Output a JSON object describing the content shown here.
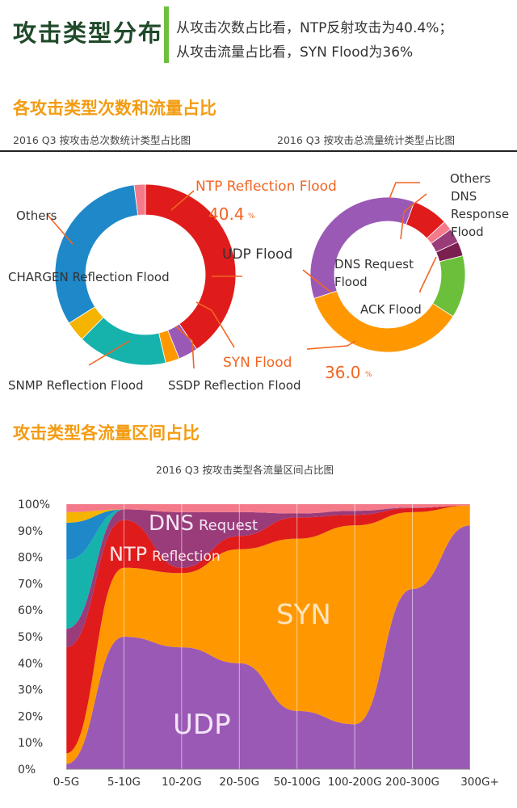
{
  "header": {
    "title": "攻击类型分布",
    "line1": "从攻击次数占比看，NTP反射攻击为40.4%；",
    "line2": "从攻击流量占比看，SYN Flood为36%"
  },
  "section1": {
    "title": "各攻击类型次数和流量占比",
    "sub_left": "2016 Q3 按攻击总次数统计类型占比图",
    "sub_right": "2016 Q3 按攻击总流量统计类型占比图"
  },
  "section2": {
    "title": "攻击类型各流量区间占比",
    "chart_title": "2016 Q3 按攻击类型各流量区间占比图"
  },
  "colors": {
    "ntp": "#e01b1b",
    "udp": "#9b59b6",
    "syn": "#ff9800",
    "ssdp": "#16b3ad",
    "snmp": "#f5b400",
    "chargen": "#1e88c8",
    "others": "#f47a8a",
    "dns_request": "#9a3b7a",
    "dns_response": "#7a1f4f",
    "ack": "#6cbf3a"
  },
  "chart_data": [
    {
      "type": "pie",
      "title": "2016 Q3 按攻击总次数统计类型占比图",
      "slices": [
        {
          "label": "NTP Reflection Flood",
          "value": 40.4
        },
        {
          "label": "UDP Flood",
          "value": 3.5
        },
        {
          "label": "SYN Flood",
          "value": 2.5
        },
        {
          "label": "SSDP Reflection Flood",
          "value": 16.0
        },
        {
          "label": "SNMP Reflection Flood",
          "value": 3.6
        },
        {
          "label": "CHARGEN Reflection Flood",
          "value": 32.0
        },
        {
          "label": "Others",
          "value": 2.0
        }
      ],
      "highlight_label": "40.4",
      "highlight_unit": "%"
    },
    {
      "type": "pie",
      "title": "2016 Q3 按攻击总流量统计类型占比图",
      "slices": [
        {
          "label": "NTP Reflection Flood",
          "value": 7.5
        },
        {
          "label": "Others",
          "value": 2.0
        },
        {
          "label": "DNS Request Flood",
          "value": 3.0
        },
        {
          "label": "DNS Response Flood",
          "value": 3.0
        },
        {
          "label": "ACK Flood",
          "value": 13.0
        },
        {
          "label": "SYN Flood",
          "value": 36.0
        },
        {
          "label": "UDP Flood",
          "value": 35.5
        }
      ],
      "highlight_label": "36.0",
      "highlight_unit": "%"
    },
    {
      "type": "area",
      "title": "2016 Q3 按攻击类型各流量区间占比图",
      "categories": [
        "0-5G",
        "5-10G",
        "10-20G",
        "20-50G",
        "50-100G",
        "100-200G",
        "200-300G",
        "300G+"
      ],
      "ylim": [
        0,
        100
      ],
      "yticks": [
        "0%",
        "10%",
        "20%",
        "30%",
        "40%",
        "50%",
        "60%",
        "70%",
        "80%",
        "90%",
        "100%"
      ],
      "series": [
        {
          "name": "UDP",
          "values": [
            2,
            50,
            46,
            40,
            22,
            17,
            68,
            92
          ]
        },
        {
          "name": "SYN",
          "values": [
            4,
            26,
            28,
            43,
            65,
            75,
            29,
            7.5
          ]
        },
        {
          "name": "NTP Reflection",
          "values": [
            40,
            18,
            2,
            5,
            8,
            4,
            1.5,
            0
          ]
        },
        {
          "name": "DNS Request",
          "values": [
            7,
            4,
            21,
            9,
            1.5,
            1.5,
            0.2,
            0
          ]
        },
        {
          "name": "SSDP",
          "values": [
            26,
            0,
            0,
            0,
            0,
            0,
            0,
            0
          ]
        },
        {
          "name": "CHARGEN",
          "values": [
            14,
            0,
            0,
            0,
            0,
            0,
            0,
            0
          ]
        },
        {
          "name": "SNMP",
          "values": [
            4,
            0,
            0,
            0,
            0,
            0,
            0,
            0
          ]
        },
        {
          "name": "Others",
          "values": [
            3,
            2,
            3,
            3,
            3.5,
            2.5,
            1.3,
            0.5
          ]
        }
      ],
      "series_labels": [
        {
          "main": "DNS",
          "small": "Request"
        },
        {
          "main": "NTP",
          "small": "Reflection"
        },
        {
          "main": "SYN",
          "small": ""
        },
        {
          "main": "UDP",
          "small": ""
        }
      ]
    }
  ]
}
